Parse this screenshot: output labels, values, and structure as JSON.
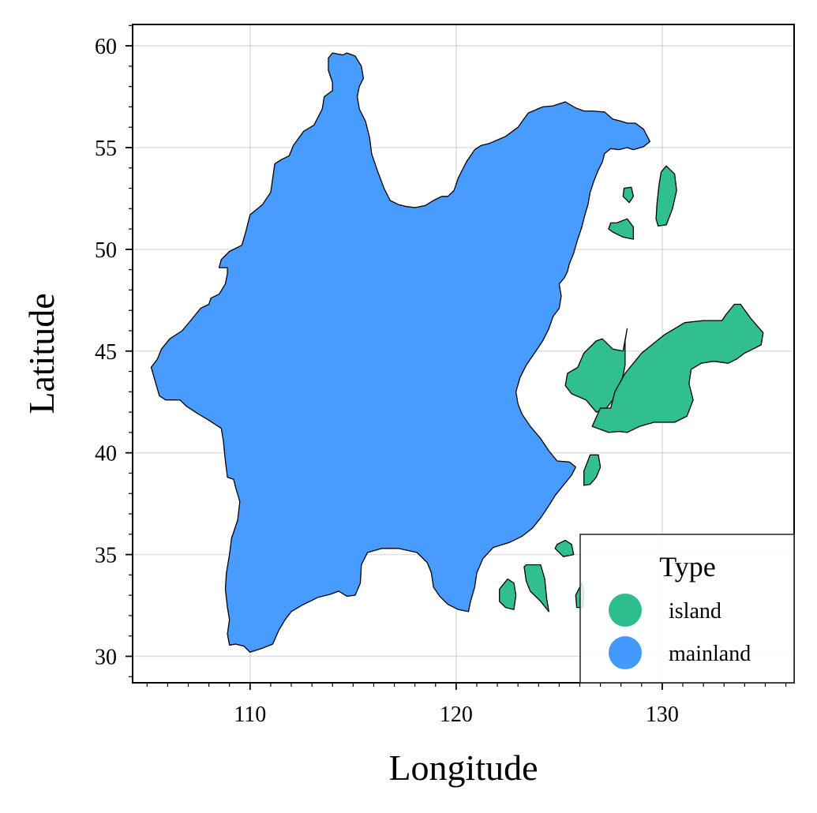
{
  "chart_data": {
    "type": "map",
    "xlabel": "Longitude",
    "ylabel": "Latitude",
    "xlim": [
      104.3,
      136.4
    ],
    "ylim": [
      28.7,
      61.05
    ],
    "xticks": [
      110,
      120,
      130
    ],
    "yticks": [
      30,
      35,
      40,
      45,
      50,
      55,
      60
    ],
    "grid": true,
    "legend": {
      "title": "Type",
      "placement": "bottom-right",
      "entries": [
        {
          "label": "island",
          "color": "#2dbd8e"
        },
        {
          "label": "mainland",
          "color": "#4499ff"
        }
      ]
    },
    "features": [
      {
        "type": "mainland",
        "coords": [
          [
            113.8,
            59.4
          ],
          [
            114.0,
            59.65
          ],
          [
            114.5,
            59.55
          ],
          [
            114.7,
            59.65
          ],
          [
            115.1,
            59.5
          ],
          [
            115.4,
            59.0
          ],
          [
            115.5,
            58.4
          ],
          [
            115.3,
            58.0
          ],
          [
            115.2,
            57.5
          ],
          [
            115.3,
            56.9
          ],
          [
            115.6,
            56.3
          ],
          [
            115.8,
            55.5
          ],
          [
            115.9,
            54.7
          ],
          [
            116.2,
            53.8
          ],
          [
            116.5,
            53.0
          ],
          [
            116.8,
            52.4
          ],
          [
            117.2,
            52.2
          ],
          [
            117.6,
            52.1
          ],
          [
            118.0,
            52.05
          ],
          [
            118.5,
            52.15
          ],
          [
            118.9,
            52.4
          ],
          [
            119.3,
            52.6
          ],
          [
            119.6,
            52.6
          ],
          [
            119.9,
            52.9
          ],
          [
            120.1,
            53.5
          ],
          [
            120.5,
            54.3
          ],
          [
            120.9,
            54.9
          ],
          [
            121.2,
            55.1
          ],
          [
            121.6,
            55.2
          ],
          [
            122.4,
            55.55
          ],
          [
            123.0,
            56.0
          ],
          [
            123.5,
            56.7
          ],
          [
            124.2,
            57.0
          ],
          [
            124.7,
            57.05
          ],
          [
            125.3,
            57.25
          ],
          [
            125.8,
            56.95
          ],
          [
            126.2,
            56.8
          ],
          [
            126.6,
            56.8
          ],
          [
            127.2,
            56.75
          ],
          [
            127.6,
            56.4
          ],
          [
            128.0,
            56.3
          ],
          [
            128.3,
            56.2
          ],
          [
            128.7,
            56.2
          ],
          [
            129.1,
            55.9
          ],
          [
            129.4,
            55.3
          ],
          [
            129.1,
            55.05
          ],
          [
            128.6,
            54.9
          ],
          [
            128.3,
            55.0
          ],
          [
            127.9,
            54.9
          ],
          [
            127.5,
            54.95
          ],
          [
            127.2,
            54.7
          ],
          [
            127.1,
            54.3
          ],
          [
            126.9,
            53.9
          ],
          [
            126.7,
            53.4
          ],
          [
            126.5,
            52.8
          ],
          [
            126.4,
            52.2
          ],
          [
            126.25,
            51.7
          ],
          [
            126.1,
            51.1
          ],
          [
            125.9,
            50.5
          ],
          [
            125.7,
            49.8
          ],
          [
            125.5,
            49.3
          ],
          [
            125.4,
            48.9
          ],
          [
            125.25,
            48.6
          ],
          [
            125.0,
            48.3
          ],
          [
            125.1,
            47.7
          ],
          [
            125.0,
            47.1
          ],
          [
            124.7,
            46.7
          ],
          [
            124.5,
            46.1
          ],
          [
            124.2,
            45.5
          ],
          [
            123.8,
            44.9
          ],
          [
            123.4,
            44.3
          ],
          [
            123.1,
            43.7
          ],
          [
            122.9,
            43.0
          ],
          [
            123.0,
            42.4
          ],
          [
            123.2,
            41.9
          ],
          [
            123.6,
            41.3
          ],
          [
            124.1,
            40.7
          ],
          [
            124.5,
            40.1
          ],
          [
            124.9,
            39.6
          ],
          [
            125.5,
            39.55
          ],
          [
            125.8,
            39.3
          ],
          [
            125.6,
            38.9
          ],
          [
            125.2,
            38.4
          ],
          [
            124.8,
            37.9
          ],
          [
            124.5,
            37.4
          ],
          [
            124.1,
            36.8
          ],
          [
            123.7,
            36.3
          ],
          [
            123.2,
            35.9
          ],
          [
            122.6,
            35.6
          ],
          [
            121.8,
            35.35
          ],
          [
            121.3,
            34.8
          ],
          [
            121.0,
            34.1
          ],
          [
            120.9,
            33.4
          ],
          [
            120.7,
            32.7
          ],
          [
            120.6,
            32.2
          ],
          [
            120.1,
            32.3
          ],
          [
            119.6,
            32.55
          ],
          [
            119.2,
            32.95
          ],
          [
            118.9,
            33.4
          ],
          [
            118.8,
            34.1
          ],
          [
            118.6,
            34.6
          ],
          [
            118.1,
            35.1
          ],
          [
            117.2,
            35.3
          ],
          [
            116.4,
            35.3
          ],
          [
            115.7,
            35.1
          ],
          [
            115.4,
            34.5
          ],
          [
            115.35,
            33.6
          ],
          [
            115.1,
            33.0
          ],
          [
            114.7,
            32.95
          ],
          [
            114.3,
            33.2
          ],
          [
            113.9,
            33.05
          ],
          [
            113.3,
            32.9
          ],
          [
            112.9,
            32.7
          ],
          [
            112.5,
            32.5
          ],
          [
            112.0,
            32.2
          ],
          [
            111.7,
            31.8
          ],
          [
            111.4,
            31.3
          ],
          [
            111.1,
            30.6
          ],
          [
            110.6,
            30.4
          ],
          [
            110.0,
            30.2
          ],
          [
            109.7,
            30.5
          ],
          [
            109.3,
            30.6
          ],
          [
            109.0,
            30.55
          ],
          [
            108.9,
            31.1
          ],
          [
            109.0,
            31.8
          ],
          [
            108.9,
            32.4
          ],
          [
            108.8,
            33.3
          ],
          [
            108.85,
            34.1
          ],
          [
            109.0,
            35.0
          ],
          [
            109.1,
            35.8
          ],
          [
            109.4,
            36.7
          ],
          [
            109.5,
            37.6
          ],
          [
            109.3,
            38.3
          ],
          [
            109.2,
            38.7
          ],
          [
            108.9,
            38.8
          ],
          [
            108.8,
            39.6
          ],
          [
            108.7,
            40.6
          ],
          [
            108.6,
            41.2
          ],
          [
            108.0,
            41.6
          ],
          [
            107.5,
            41.9
          ],
          [
            106.9,
            42.3
          ],
          [
            106.6,
            42.6
          ],
          [
            105.9,
            42.6
          ],
          [
            105.6,
            42.8
          ],
          [
            105.4,
            43.5
          ],
          [
            105.2,
            44.2
          ],
          [
            105.5,
            44.6
          ],
          [
            105.7,
            45.1
          ],
          [
            106.1,
            45.6
          ],
          [
            106.7,
            46.0
          ],
          [
            107.2,
            46.6
          ],
          [
            107.6,
            47.1
          ],
          [
            108.0,
            47.3
          ],
          [
            108.1,
            47.6
          ],
          [
            108.5,
            47.8
          ],
          [
            108.8,
            48.3
          ],
          [
            108.9,
            48.8
          ],
          [
            108.9,
            49.1
          ],
          [
            108.5,
            49.1
          ],
          [
            108.6,
            49.5
          ],
          [
            109.0,
            49.9
          ],
          [
            109.6,
            50.2
          ],
          [
            109.8,
            50.9
          ],
          [
            110.0,
            51.7
          ],
          [
            110.6,
            52.2
          ],
          [
            111.0,
            52.8
          ],
          [
            111.1,
            53.5
          ],
          [
            111.2,
            54.2
          ],
          [
            111.5,
            54.4
          ],
          [
            111.9,
            54.6
          ],
          [
            112.1,
            55.1
          ],
          [
            112.6,
            55.8
          ],
          [
            113.1,
            56.1
          ],
          [
            113.3,
            56.5
          ],
          [
            113.5,
            56.9
          ],
          [
            113.6,
            57.5
          ],
          [
            114.0,
            57.8
          ],
          [
            114.0,
            58.2
          ],
          [
            113.8,
            58.8
          ]
        ]
      },
      {
        "type": "island",
        "coords": [
          [
            130.2,
            54.1
          ],
          [
            130.6,
            53.7
          ],
          [
            130.7,
            52.9
          ],
          [
            130.5,
            52.0
          ],
          [
            130.2,
            51.2
          ],
          [
            129.8,
            51.15
          ],
          [
            129.7,
            51.5
          ],
          [
            129.75,
            52.3
          ],
          [
            129.85,
            53.2
          ],
          [
            129.95,
            53.8
          ]
        ]
      },
      {
        "type": "island",
        "coords": [
          [
            128.15,
            53.0
          ],
          [
            128.5,
            53.05
          ],
          [
            128.6,
            52.6
          ],
          [
            128.4,
            52.3
          ],
          [
            128.1,
            52.6
          ]
        ]
      },
      {
        "type": "island",
        "coords": [
          [
            127.5,
            51.3
          ],
          [
            127.8,
            51.3
          ],
          [
            128.3,
            51.5
          ],
          [
            128.6,
            51.1
          ],
          [
            128.6,
            50.5
          ],
          [
            128.1,
            50.6
          ],
          [
            127.6,
            50.85
          ],
          [
            127.4,
            51.0
          ]
        ]
      },
      {
        "type": "island",
        "coords": [
          [
            128.3,
            46.1
          ],
          [
            128.2,
            45.5
          ],
          [
            128.2,
            44.3
          ],
          [
            128.0,
            43.3
          ],
          [
            127.6,
            42.6
          ],
          [
            127.3,
            42.2
          ],
          [
            126.8,
            42.0
          ],
          [
            126.3,
            42.6
          ],
          [
            125.6,
            42.9
          ],
          [
            125.3,
            43.3
          ],
          [
            125.4,
            43.9
          ],
          [
            125.9,
            44.2
          ],
          [
            126.2,
            44.9
          ],
          [
            126.8,
            45.5
          ],
          [
            127.1,
            45.6
          ],
          [
            127.6,
            45.1
          ],
          [
            128.1,
            45.0
          ]
        ]
      },
      {
        "type": "island",
        "coords": [
          [
            133.5,
            47.3
          ],
          [
            133.8,
            47.3
          ],
          [
            134.3,
            46.6
          ],
          [
            134.9,
            45.9
          ],
          [
            134.8,
            45.3
          ],
          [
            134.0,
            44.9
          ],
          [
            133.6,
            44.6
          ],
          [
            133.2,
            44.4
          ],
          [
            132.5,
            44.5
          ],
          [
            131.9,
            44.4
          ],
          [
            131.4,
            44.1
          ],
          [
            131.3,
            43.4
          ],
          [
            131.5,
            42.6
          ],
          [
            131.2,
            41.8
          ],
          [
            130.6,
            41.5
          ],
          [
            129.6,
            41.5
          ],
          [
            128.9,
            41.3
          ],
          [
            128.3,
            41.0
          ],
          [
            127.9,
            41.05
          ],
          [
            127.4,
            41.0
          ],
          [
            126.6,
            41.3
          ],
          [
            127.0,
            42.2
          ],
          [
            127.5,
            42.2
          ],
          [
            127.7,
            43.0
          ],
          [
            128.2,
            43.9
          ],
          [
            129.0,
            44.9
          ],
          [
            130.1,
            45.8
          ],
          [
            131.1,
            46.4
          ],
          [
            132.0,
            46.5
          ],
          [
            132.9,
            46.5
          ],
          [
            133.1,
            46.8
          ]
        ]
      },
      {
        "type": "island",
        "coords": [
          [
            126.5,
            39.9
          ],
          [
            126.9,
            39.9
          ],
          [
            127.0,
            39.3
          ],
          [
            126.8,
            38.8
          ],
          [
            126.5,
            38.45
          ],
          [
            126.2,
            38.4
          ],
          [
            126.2,
            39.1
          ]
        ]
      },
      {
        "type": "island",
        "coords": [
          [
            124.9,
            35.5
          ],
          [
            125.3,
            35.7
          ],
          [
            125.6,
            35.5
          ],
          [
            125.7,
            35.0
          ],
          [
            125.2,
            34.9
          ],
          [
            124.8,
            35.3
          ]
        ]
      },
      {
        "type": "island",
        "coords": [
          [
            123.4,
            34.5
          ],
          [
            124.1,
            34.5
          ],
          [
            124.3,
            33.8
          ],
          [
            124.4,
            32.8
          ],
          [
            124.5,
            32.2
          ],
          [
            124.1,
            32.7
          ],
          [
            123.6,
            33.2
          ],
          [
            123.4,
            33.7
          ],
          [
            123.3,
            34.4
          ]
        ]
      },
      {
        "type": "island",
        "coords": [
          [
            122.5,
            33.8
          ],
          [
            122.8,
            33.6
          ],
          [
            122.9,
            33.0
          ],
          [
            122.8,
            32.3
          ],
          [
            122.4,
            32.4
          ],
          [
            122.1,
            32.7
          ],
          [
            122.1,
            33.3
          ]
        ]
      },
      {
        "type": "island",
        "coords": [
          [
            125.8,
            33.0
          ],
          [
            126.1,
            33.6
          ],
          [
            126.2,
            33.2
          ],
          [
            126.15,
            32.4
          ],
          [
            125.85,
            32.4
          ]
        ]
      }
    ]
  }
}
